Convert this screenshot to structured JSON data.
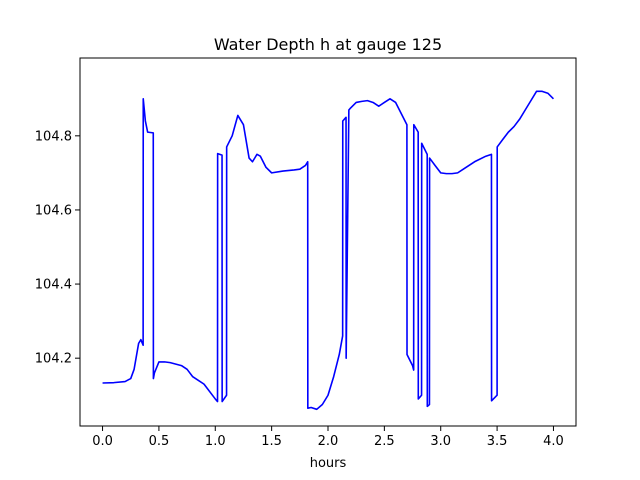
{
  "chart_data": {
    "type": "line",
    "title": "Water Depth h at gauge 125",
    "xlabel": "hours",
    "ylabel": "",
    "xlim": [
      -0.2,
      4.2
    ],
    "ylim": [
      104.017,
      105.01
    ],
    "xticks": [
      0.0,
      0.5,
      1.0,
      1.5,
      2.0,
      2.5,
      3.0,
      3.5,
      4.0
    ],
    "xtick_labels": [
      "0.0",
      "0.5",
      "1.0",
      "1.5",
      "2.0",
      "2.5",
      "3.0",
      "3.5",
      "4.0"
    ],
    "yticks": [
      104.2,
      104.4,
      104.6,
      104.8
    ],
    "ytick_labels": [
      "104.2",
      "104.4",
      "104.6",
      "104.8"
    ],
    "grid": false,
    "legend": "none",
    "series": [
      {
        "color": "#0000ff",
        "x": [
          0.0,
          0.1,
          0.2,
          0.25,
          0.28,
          0.32,
          0.34,
          0.36,
          0.361,
          0.38,
          0.4,
          0.45,
          0.451,
          0.46,
          0.5,
          0.55,
          0.6,
          0.7,
          0.75,
          0.8,
          0.9,
          1.0,
          1.02,
          1.021,
          1.06,
          1.061,
          1.1,
          1.101,
          1.15,
          1.2,
          1.25,
          1.3,
          1.33,
          1.37,
          1.4,
          1.45,
          1.5,
          1.6,
          1.7,
          1.75,
          1.8,
          1.82,
          1.821,
          1.85,
          1.9,
          1.95,
          2.0,
          2.05,
          2.1,
          2.13,
          2.131,
          2.16,
          2.161,
          2.185,
          2.186,
          2.2,
          2.25,
          2.3,
          2.35,
          2.4,
          2.45,
          2.5,
          2.55,
          2.6,
          2.65,
          2.7,
          2.701,
          2.75,
          2.76,
          2.761,
          2.8,
          2.801,
          2.83,
          2.831,
          2.88,
          2.881,
          2.9,
          2.901,
          2.95,
          3.0,
          3.05,
          3.1,
          3.15,
          3.2,
          3.3,
          3.4,
          3.45,
          3.451,
          3.5,
          3.501,
          3.55,
          3.6,
          3.65,
          3.7,
          3.75,
          3.8,
          3.85,
          3.9,
          3.95,
          4.0
        ],
        "y": [
          104.133,
          104.134,
          104.137,
          104.145,
          104.17,
          104.24,
          104.25,
          104.235,
          104.9,
          104.84,
          104.81,
          104.808,
          104.145,
          104.16,
          104.19,
          104.19,
          104.188,
          104.18,
          104.17,
          104.15,
          104.13,
          104.09,
          104.083,
          104.752,
          104.748,
          104.083,
          104.1,
          104.77,
          104.8,
          104.855,
          104.83,
          104.74,
          104.73,
          104.75,
          104.745,
          104.715,
          104.7,
          104.705,
          104.708,
          104.71,
          104.72,
          104.73,
          104.065,
          104.067,
          104.062,
          104.075,
          104.1,
          104.15,
          104.21,
          104.26,
          104.84,
          104.85,
          104.2,
          104.87,
          104.87,
          104.875,
          104.89,
          104.893,
          104.895,
          104.89,
          104.88,
          104.89,
          104.9,
          104.89,
          104.86,
          104.83,
          104.21,
          104.18,
          104.168,
          104.83,
          104.81,
          104.09,
          104.1,
          104.78,
          104.75,
          104.07,
          104.075,
          104.74,
          104.72,
          104.7,
          104.698,
          104.698,
          104.7,
          104.71,
          104.73,
          104.745,
          104.75,
          104.085,
          104.1,
          104.77,
          104.79,
          104.81,
          104.825,
          104.845,
          104.87,
          104.895,
          104.92,
          104.92,
          104.915,
          104.9
        ]
      }
    ]
  }
}
